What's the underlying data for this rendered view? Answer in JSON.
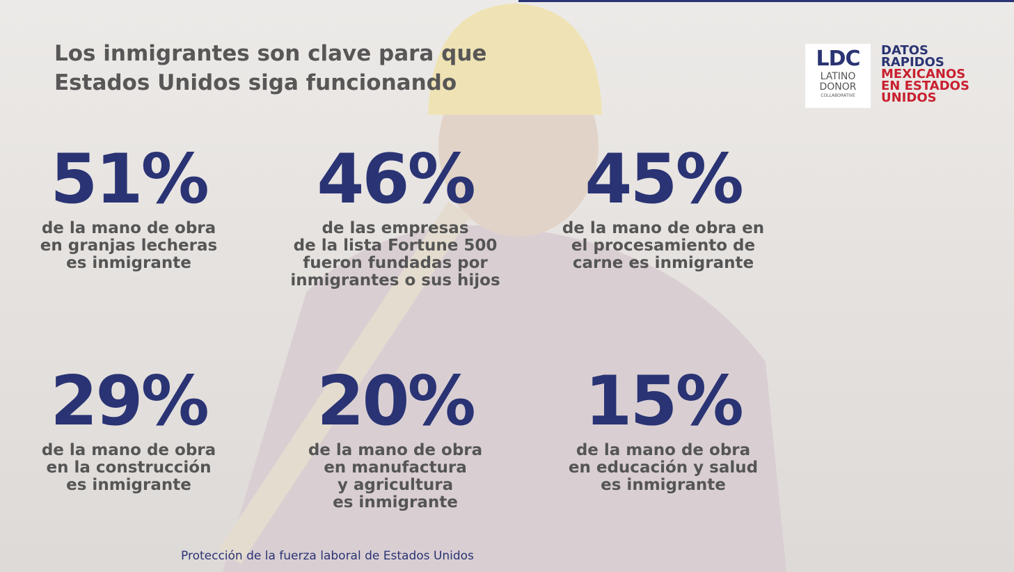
{
  "header": {
    "title_lines": [
      "Los inmigrantes son clave para que",
      "Estados Unidos siga funcionando"
    ]
  },
  "logo": {
    "mark": "LDC",
    "lines": [
      "LATINO",
      "DONOR",
      "COLLABORATIVE"
    ]
  },
  "badge": {
    "primary_lines": [
      "DATOS",
      "RAPIDOS"
    ],
    "secondary_lines": [
      "MEXICANOS",
      "EN ESTADOS",
      "UNIDOS"
    ]
  },
  "stats": [
    {
      "figure": "51%",
      "lines": [
        "de la mano de obra",
        "en granjas lecheras",
        "es inmigrante"
      ]
    },
    {
      "figure": "46%",
      "lines": [
        "de las empresas",
        "de la lista Fortune 500",
        "fueron fundadas por",
        "inmigrantes o sus hijos"
      ]
    },
    {
      "figure": "45%",
      "lines": [
        "de la mano de obra en",
        "el procesamiento de",
        "carne es inmigrante"
      ]
    },
    {
      "figure": "29%",
      "lines": [
        "de la mano de obra",
        "en la construcción",
        "es inmigrante"
      ]
    },
    {
      "figure": "20%",
      "lines": [
        "de la mano de obra",
        "en manufactura",
        "y agricultura",
        "es inmigrante"
      ]
    },
    {
      "figure": "15%",
      "lines": [
        "de la mano de obra",
        "en educación y salud",
        "es inmigrante"
      ]
    }
  ],
  "footer": {
    "text": "Protección de la fuerza laboral de Estados Unidos"
  }
}
